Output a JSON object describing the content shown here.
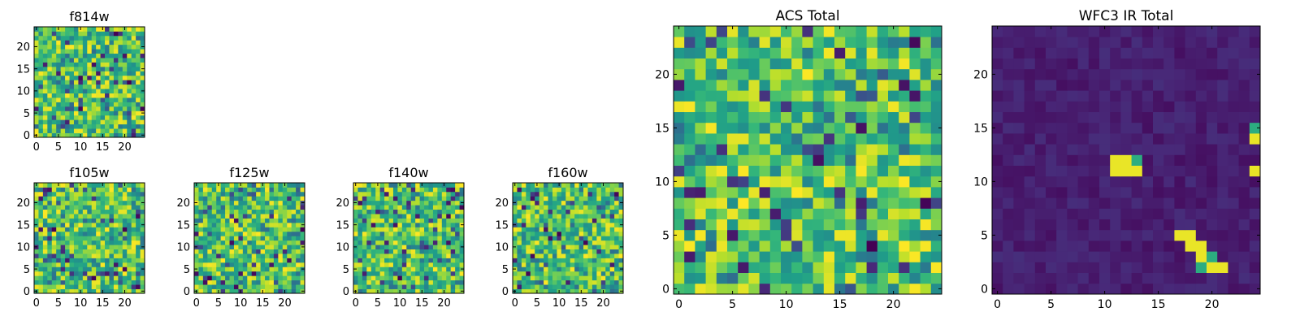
{
  "chart_data": [
    {
      "type": "heatmap",
      "title": "f814w",
      "colormap": "viridis",
      "grid_size": [
        25,
        25
      ],
      "xlim": [
        0,
        24
      ],
      "ylim": [
        0,
        24
      ],
      "xticks": [
        0,
        5,
        10,
        15,
        20
      ],
      "yticks": [
        0,
        5,
        10,
        15,
        20
      ],
      "xlabel": "",
      "ylabel": "",
      "grid": false,
      "pattern": "noise"
    },
    {
      "type": "heatmap",
      "title": "f105w",
      "colormap": "viridis",
      "grid_size": [
        25,
        25
      ],
      "xlim": [
        0,
        24
      ],
      "ylim": [
        0,
        24
      ],
      "xticks": [
        0,
        5,
        10,
        15,
        20
      ],
      "yticks": [
        0,
        5,
        10,
        15,
        20
      ],
      "xlabel": "",
      "ylabel": "",
      "grid": false,
      "pattern": "noise"
    },
    {
      "type": "heatmap",
      "title": "f125w",
      "colormap": "viridis",
      "grid_size": [
        25,
        25
      ],
      "xlim": [
        0,
        24
      ],
      "ylim": [
        0,
        24
      ],
      "xticks": [
        0,
        5,
        10,
        15,
        20
      ],
      "yticks": [
        0,
        5,
        10,
        15,
        20
      ],
      "xlabel": "",
      "ylabel": "",
      "grid": false,
      "pattern": "noise"
    },
    {
      "type": "heatmap",
      "title": "f140w",
      "colormap": "viridis",
      "grid_size": [
        25,
        25
      ],
      "xlim": [
        0,
        24
      ],
      "ylim": [
        0,
        24
      ],
      "xticks": [
        0,
        5,
        10,
        15,
        20
      ],
      "yticks": [
        0,
        5,
        10,
        15,
        20
      ],
      "xlabel": "",
      "ylabel": "",
      "grid": false,
      "pattern": "noise"
    },
    {
      "type": "heatmap",
      "title": "f160w",
      "colormap": "viridis",
      "grid_size": [
        25,
        25
      ],
      "xlim": [
        0,
        24
      ],
      "ylim": [
        0,
        24
      ],
      "xticks": [
        0,
        5,
        10,
        15,
        20
      ],
      "yticks": [
        0,
        5,
        10,
        15,
        20
      ],
      "xlabel": "",
      "ylabel": "",
      "grid": false,
      "pattern": "noise"
    },
    {
      "type": "heatmap",
      "title": "ACS Total",
      "colormap": "viridis",
      "grid_size": [
        25,
        25
      ],
      "xlim": [
        0,
        24
      ],
      "ylim": [
        0,
        24
      ],
      "xticks": [
        0,
        5,
        10,
        15,
        20
      ],
      "yticks": [
        0,
        5,
        10,
        15,
        20
      ],
      "xlabel": "",
      "ylabel": "",
      "grid": false,
      "pattern": "noise"
    },
    {
      "type": "heatmap",
      "title": "WFC3 IR Total",
      "colormap": "viridis",
      "grid_size": [
        25,
        25
      ],
      "xlim": [
        0,
        24
      ],
      "ylim": [
        0,
        24
      ],
      "xticks": [
        0,
        5,
        10,
        15,
        20
      ],
      "yticks": [
        0,
        5,
        10,
        15,
        20
      ],
      "xlabel": "",
      "ylabel": "",
      "grid": false,
      "pattern": "sources",
      "bright_pixels": [
        [
          11,
          12
        ],
        [
          12,
          12
        ],
        [
          11,
          11
        ],
        [
          12,
          11
        ],
        [
          13,
          11
        ],
        [
          24,
          14
        ],
        [
          24,
          11
        ],
        [
          17,
          5
        ],
        [
          18,
          5
        ],
        [
          18,
          4
        ],
        [
          19,
          4
        ],
        [
          19,
          3
        ],
        [
          20,
          2
        ],
        [
          21,
          2
        ]
      ],
      "medium_pixels": [
        [
          24,
          15
        ],
        [
          13,
          12
        ],
        [
          19,
          2
        ],
        [
          20,
          3
        ]
      ]
    }
  ]
}
